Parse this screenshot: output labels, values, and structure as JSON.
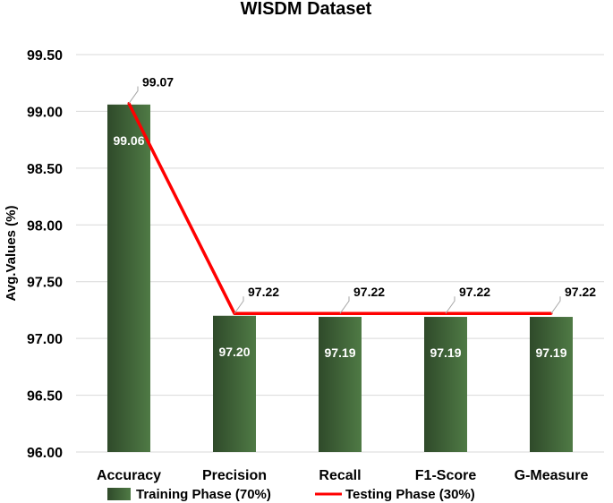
{
  "chart_data": {
    "type": "bar",
    "title": "WISDM Dataset",
    "xlabel": "",
    "ylabel": "Avg.Values (%)",
    "ylim": [
      96.0,
      99.5
    ],
    "yticks": [
      "96.00",
      "96.50",
      "97.00",
      "97.50",
      "98.00",
      "98.50",
      "99.00",
      "99.50"
    ],
    "categories": [
      "Accuracy",
      "Precision",
      "Recall",
      "F1-Score",
      "G-Measure"
    ],
    "series": [
      {
        "name": "Training Phase (70%)",
        "type": "bar",
        "values": [
          99.06,
          97.2,
          97.19,
          97.19,
          97.19
        ],
        "labels": [
          "99.06",
          "97.20",
          "97.19",
          "97.19",
          "97.19"
        ],
        "color": "#3e5f36"
      },
      {
        "name": "Testing Phase (30%)",
        "type": "line",
        "values": [
          99.07,
          97.22,
          97.22,
          97.22,
          97.22
        ],
        "labels": [
          "99.07",
          "97.22",
          "97.22",
          "97.22",
          "97.22"
        ],
        "color": "#ff0000"
      }
    ],
    "grid": true,
    "legend": "bottom"
  }
}
